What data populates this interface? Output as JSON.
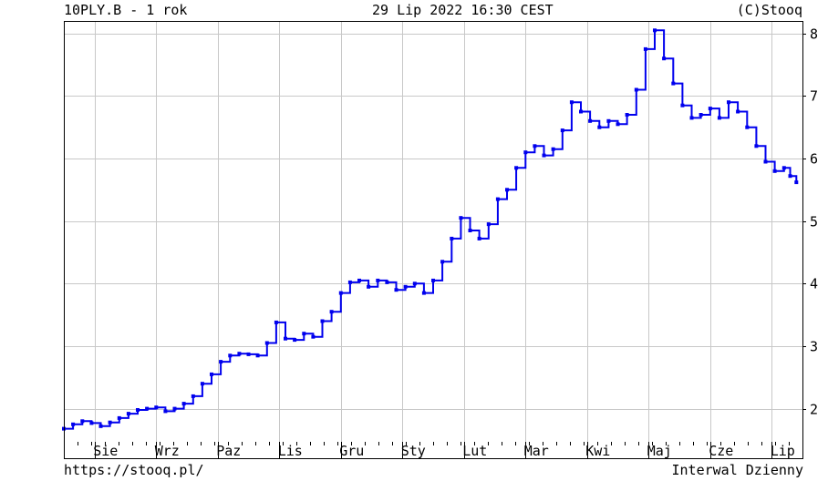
{
  "header": {
    "title": "10PLY.B - 1 rok",
    "datetime": "29 Lip 2022 16:30 CEST",
    "copyright": "(C)Stooq"
  },
  "footer": {
    "url": "https://stooq.pl/",
    "interval": "Interwal Dzienny"
  },
  "colors": {
    "series": "#0000ee",
    "grid": "#c8c8c8",
    "axis": "#000000",
    "background": "#ffffff"
  },
  "chart_data": {
    "type": "line",
    "title": "10PLY.B - 1 rok",
    "xlabel": "",
    "ylabel": "",
    "ylim": [
      1.47,
      8.2
    ],
    "yticks": [
      2,
      3,
      4,
      5,
      6,
      7,
      8
    ],
    "grid": true,
    "y_axis_side": "right",
    "months": [
      "Sie",
      "Wrz",
      "Paz",
      "Lis",
      "Gru",
      "Sty",
      "Lut",
      "Mar",
      "Kwi",
      "Maj",
      "Cze",
      "Lip"
    ],
    "x_range_months": [
      0,
      11.93
    ],
    "series": [
      {
        "x": [
          0.0,
          0.15,
          0.3,
          0.45,
          0.6,
          0.75,
          0.9,
          1.05,
          1.2,
          1.35,
          1.5,
          1.65,
          1.8,
          1.95,
          2.1,
          2.25,
          2.4,
          2.55,
          2.7,
          2.85,
          3.0,
          3.15,
          3.3,
          3.45,
          3.6,
          3.75,
          3.9,
          4.05,
          4.2,
          4.35,
          4.5,
          4.65,
          4.8,
          4.95,
          5.1,
          5.25,
          5.4,
          5.55,
          5.7,
          5.85,
          6.0,
          6.15,
          6.3,
          6.45,
          6.6,
          6.75,
          6.9,
          7.05,
          7.2,
          7.35,
          7.5,
          7.65,
          7.8,
          7.95,
          8.1,
          8.25,
          8.4,
          8.55,
          8.7,
          8.85,
          9.0,
          9.15,
          9.3,
          9.45,
          9.6,
          9.75,
          9.9,
          10.05,
          10.2,
          10.35,
          10.5,
          10.65,
          10.8,
          10.95,
          11.1,
          11.25,
          11.4,
          11.55,
          11.7,
          11.8,
          11.9
        ],
        "y": [
          1.68,
          1.75,
          1.8,
          1.77,
          1.72,
          1.78,
          1.85,
          1.92,
          1.98,
          2.0,
          2.02,
          1.96,
          2.0,
          2.08,
          2.2,
          2.4,
          2.55,
          2.75,
          2.85,
          2.88,
          2.87,
          2.85,
          3.05,
          3.38,
          3.12,
          3.1,
          3.2,
          3.15,
          3.4,
          3.55,
          3.85,
          4.02,
          4.05,
          3.95,
          4.05,
          4.02,
          3.9,
          3.95,
          4.0,
          3.85,
          4.05,
          4.35,
          4.72,
          5.05,
          4.85,
          4.72,
          4.95,
          5.35,
          5.5,
          5.85,
          6.1,
          6.2,
          6.05,
          6.15,
          6.45,
          6.9,
          6.75,
          6.6,
          6.5,
          6.6,
          6.55,
          6.7,
          7.1,
          7.75,
          8.05,
          7.6,
          7.2,
          6.85,
          6.65,
          6.7,
          6.8,
          6.65,
          6.9,
          6.75,
          6.5,
          6.2,
          5.95,
          5.8,
          5.85,
          5.72,
          5.62
        ]
      }
    ]
  }
}
